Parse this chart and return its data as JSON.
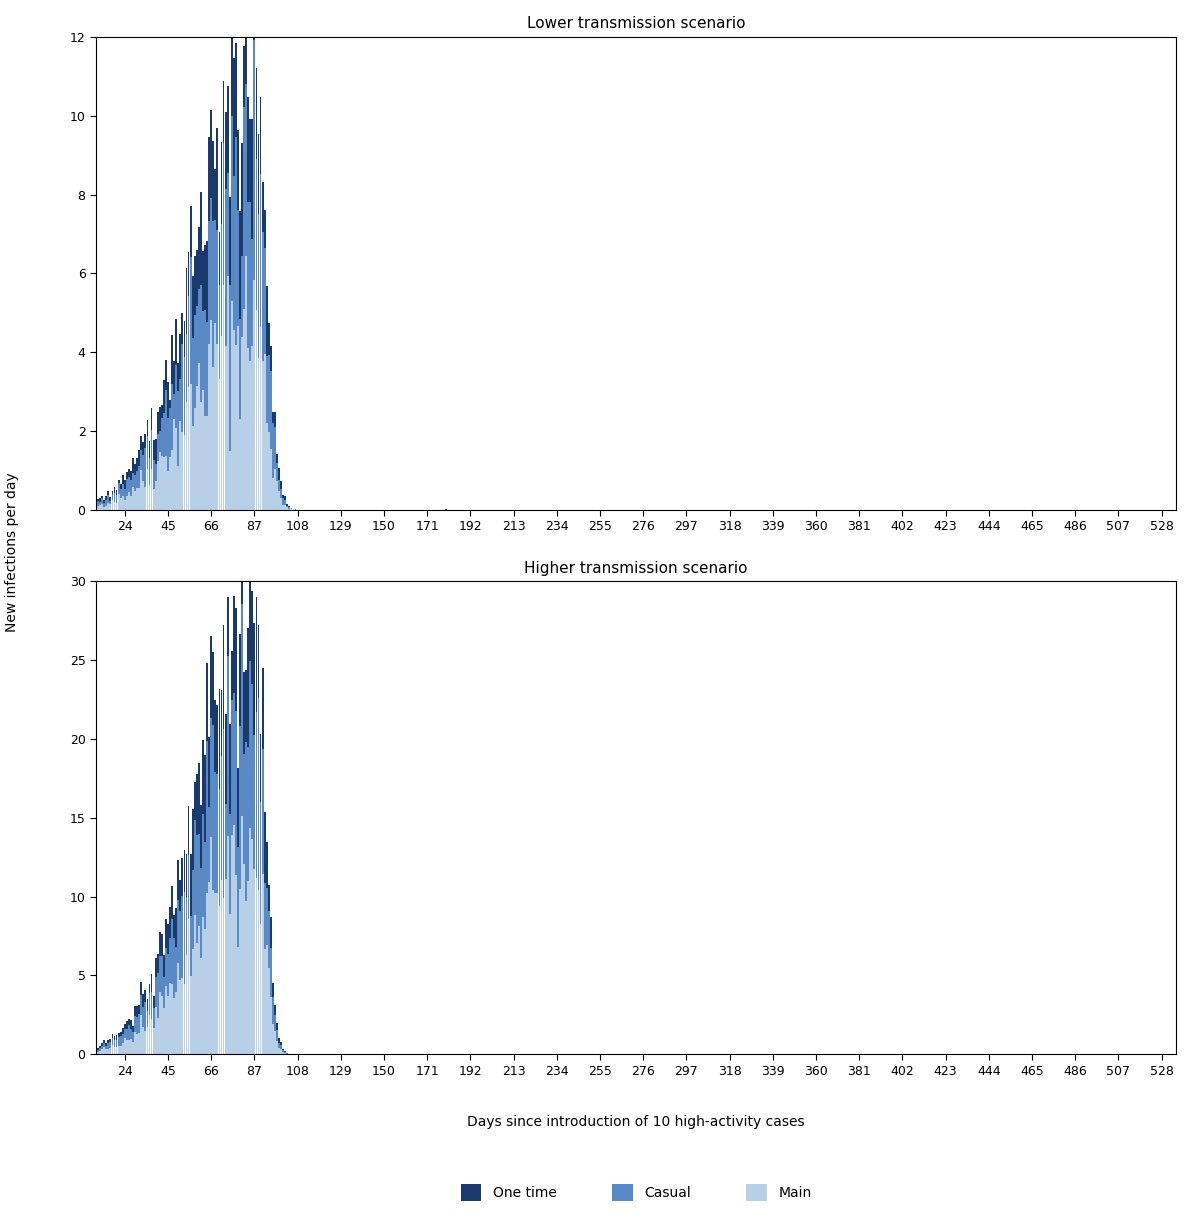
{
  "title_lower": "Lower transmission scenario",
  "title_higher": "Higher transmission scenario",
  "ylabel": "New infections per day",
  "xlabel": "Days since introduction of 10 high-activity cases",
  "xtick_labels": [
    24,
    45,
    66,
    87,
    108,
    129,
    150,
    171,
    192,
    213,
    234,
    255,
    276,
    297,
    318,
    339,
    360,
    381,
    402,
    423,
    444,
    465,
    486,
    507,
    528
  ],
  "ylim_lower": [
    0,
    12
  ],
  "ylim_higher": [
    0,
    30
  ],
  "yticks_lower": [
    0,
    2,
    4,
    6,
    8,
    10,
    12
  ],
  "yticks_higher": [
    0,
    5,
    10,
    15,
    20,
    25,
    30
  ],
  "colors": {
    "one_time": "#1a3a6e",
    "casual": "#5a8ac6",
    "main": "#b8cfe8"
  },
  "legend_labels": [
    "One time",
    "Casual",
    "Main"
  ],
  "bar_width": 0.9,
  "peak_day_lower": 87,
  "peak_day_higher": 87,
  "lower_peak_total": 10.8,
  "higher_peak_total": 28.0
}
